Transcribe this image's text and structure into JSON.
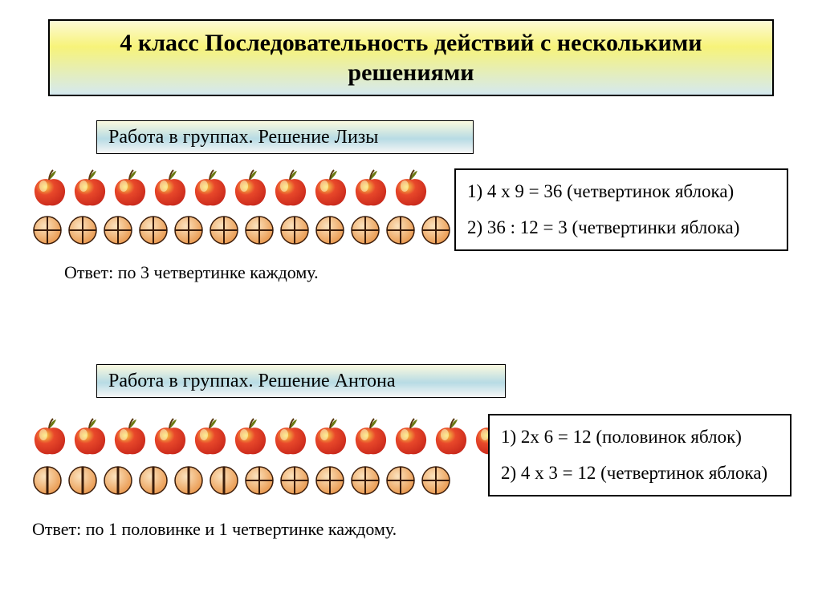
{
  "colors": {
    "title_gradient_top": "#fdfad5",
    "title_gradient_mid": "#f7f37a",
    "title_gradient_bottom": "#d5e9f0",
    "sub_gradient_top": "#fbfadf",
    "sub_gradient_mid": "#b7dbe4",
    "sub_gradient_bottom": "#f7f7f7",
    "border": "#000000",
    "background": "#ffffff",
    "apple_body_light": "#f7d94c",
    "apple_body_dark": "#c9291c",
    "apple_body_mid": "#e8482a",
    "apple_leaf": "#6b7a12",
    "apple_stem": "#5a3a12",
    "disc_fill_light": "#fbe3bf",
    "disc_fill_dark": "#e9964a",
    "disc_line": "#3a1c0a"
  },
  "typography": {
    "title_fontsize": 30,
    "title_weight": "bold",
    "sub_fontsize": 24,
    "body_fontsize": 22,
    "calc_fontsize": 23,
    "font_family": "Times New Roman"
  },
  "title": "4 класс Последовательность действий с несколькими решениями",
  "section1": {
    "heading": "Работа в группах. Решение Лизы",
    "apples": 10,
    "discs": {
      "count": 12,
      "style": "quarters"
    },
    "answer": "Ответ:  по 3 четвертинке каждому.",
    "calc": {
      "lines": [
        "1) 4 х 9 = 36 (четвертинок яблока)",
        "2) 36 : 12 = 3 (четвертинки яблока)"
      ]
    }
  },
  "section2": {
    "heading": "Работа в группах. Решение Антона",
    "apples": 12,
    "discs": {
      "count": 12,
      "styles": [
        "half",
        "half",
        "half",
        "half",
        "half",
        "half",
        "quarters",
        "quarters",
        "quarters",
        "quarters",
        "quarters",
        "quarters"
      ]
    },
    "answer": "Ответ:  по 1 половинке и 1 четвертинке каждому.",
    "calc": {
      "lines": [
        "1) 2х 6 = 12 (половинок яблок)",
        "2) 4 х 3 = 12 (четвертинок яблока)"
      ]
    }
  }
}
